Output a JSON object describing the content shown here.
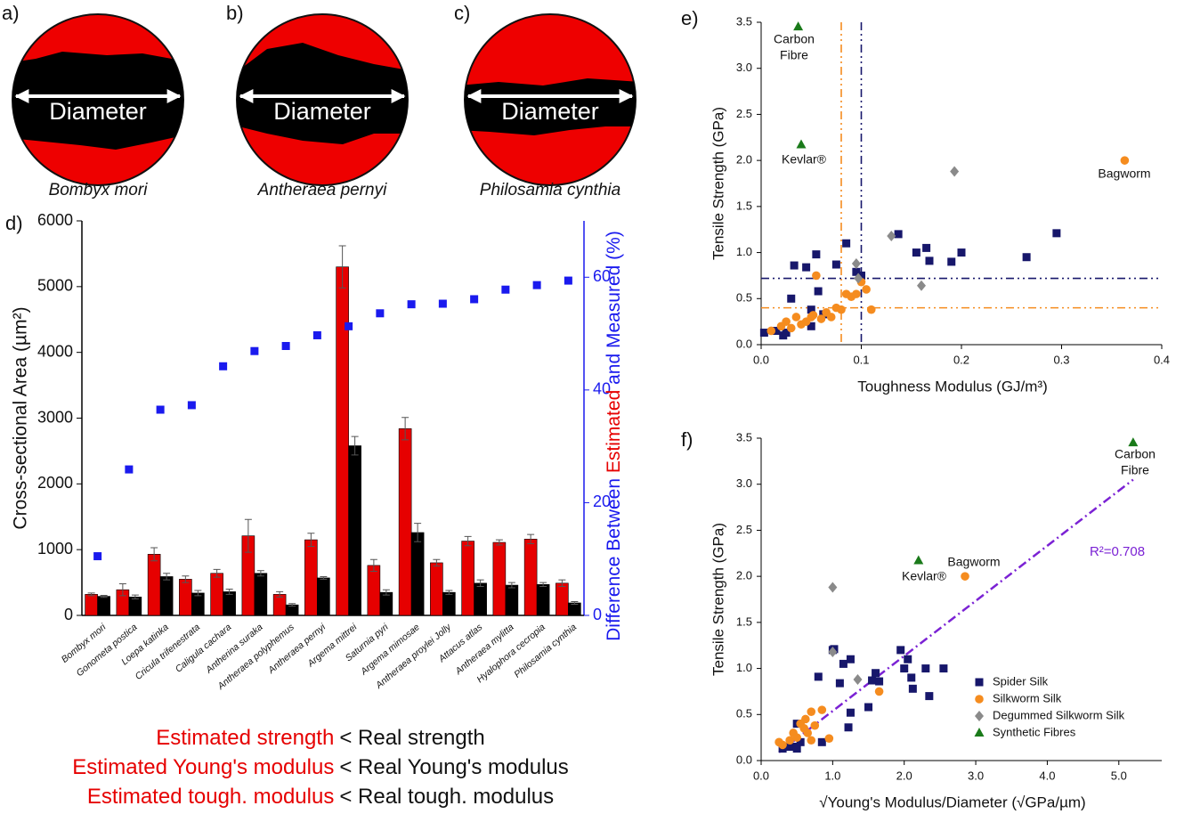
{
  "cross_sections": [
    {
      "label": "a)",
      "text": "Diameter",
      "species": "Bombyx mori"
    },
    {
      "label": "b)",
      "text": "Diameter",
      "species": "Antheraea pernyi"
    },
    {
      "label": "c)",
      "text": "Diameter",
      "species": "Philosamia cynthia"
    }
  ],
  "notes": [
    {
      "estimated": "Estimated strength",
      "real": "< Real strength"
    },
    {
      "estimated": "Estimated Young's modulus",
      "real": "< Real Young's modulus"
    },
    {
      "estimated": "Estimated tough. modulus",
      "real": "< Real tough. modulus"
    }
  ],
  "chart_data": [
    {
      "type": "bar",
      "label": "d)",
      "ylabel": "Cross-sectional Area (µm²)",
      "y2label_parts": [
        "Difference Between ",
        "Estimated",
        " and Measured (%)"
      ],
      "categories": [
        "Bombyx mori",
        "Gonometa postica",
        "Loepa katinka",
        "Cricula trifenestrata",
        "Caligula cachara",
        "Antherina suraka",
        "Antheraea polyphemus",
        "Antheraea pernyi",
        "Argema mittrei",
        "Saturnia pyri",
        "Argema mimosae",
        "Antheraea proylei Jolly",
        "Attacus atlas",
        "Antheraea mylitta",
        "Hyalophora cecropia",
        "Philosamia cynthia"
      ],
      "series": [
        {
          "color": "#e60000",
          "values": [
            320,
            390,
            930,
            550,
            640,
            1210,
            320,
            1150,
            5300,
            760,
            2840,
            800,
            1130,
            1110,
            1160,
            490
          ],
          "errors": [
            20,
            90,
            100,
            50,
            60,
            250,
            40,
            100,
            320,
            90,
            170,
            50,
            70,
            40,
            70,
            50
          ]
        },
        {
          "color": "#000000",
          "values": [
            290,
            280,
            590,
            340,
            360,
            640,
            160,
            570,
            2580,
            350,
            1260,
            350,
            490,
            460,
            470,
            190
          ],
          "errors": [
            15,
            30,
            50,
            40,
            40,
            40,
            20,
            20,
            140,
            40,
            140,
            30,
            50,
            40,
            30,
            20
          ]
        },
        {
          "axis": "y2",
          "color": "#1a1aee",
          "marker": "square",
          "values": [
            10.5,
            25.9,
            36.5,
            37.3,
            44.2,
            46.9,
            47.8,
            49.7,
            51.3,
            53.6,
            55.2,
            55.3,
            56.1,
            57.8,
            58.6,
            59.4
          ]
        }
      ],
      "ylim": [
        0,
        6000
      ],
      "yticks": [
        0,
        1000,
        2000,
        3000,
        4000,
        5000,
        6000
      ],
      "y2lim": [
        0,
        70
      ],
      "y2ticks": [
        0,
        20,
        40,
        60
      ],
      "y2color": "#1a1aee"
    },
    {
      "type": "scatter",
      "label": "e)",
      "xlabel": "Toughness Modulus (GJ/m³)",
      "ylabel": "Tensile Strength (GPa)",
      "xlim": [
        0,
        0.4
      ],
      "xticks": [
        {
          "value": 0,
          "label": "0.0"
        },
        0.1,
        0.2,
        0.3,
        0.4
      ],
      "ylim": [
        0,
        3.5
      ],
      "yticks": [
        {
          "value": 0,
          "label": "0.0"
        },
        0.5,
        {
          "value": 1,
          "label": "1.0"
        },
        1.5,
        {
          "value": 2,
          "label": "2.0"
        },
        2.5,
        {
          "value": 3,
          "label": "3.0"
        },
        3.5
      ],
      "series": [
        {
          "marker": "square",
          "color": "#17176b",
          "x": [
            0.003,
            0.015,
            0.022,
            0.025,
            0.03,
            0.033,
            0.045,
            0.05,
            0.05,
            0.055,
            0.057,
            0.062,
            0.075,
            0.085,
            0.095,
            0.1,
            0.137,
            0.155,
            0.165,
            0.168,
            0.19,
            0.2,
            0.265,
            0.295
          ],
          "y": [
            0.13,
            0.15,
            0.1,
            0.13,
            0.5,
            0.86,
            0.84,
            0.38,
            0.2,
            0.98,
            0.58,
            0.33,
            0.87,
            1.1,
            0.79,
            0.75,
            1.2,
            1.0,
            1.05,
            0.91,
            0.9,
            1.0,
            0.95,
            1.21
          ]
        },
        {
          "marker": "circle",
          "color": "#f58c1f",
          "x": [
            0.01,
            0.02,
            0.025,
            0.03,
            0.035,
            0.04,
            0.045,
            0.05,
            0.052,
            0.055,
            0.06,
            0.065,
            0.07,
            0.075,
            0.08,
            0.085,
            0.09,
            0.095,
            0.1,
            0.105,
            0.11,
            0.363
          ],
          "y": [
            0.15,
            0.2,
            0.25,
            0.18,
            0.3,
            0.22,
            0.25,
            0.3,
            0.32,
            0.75,
            0.28,
            0.35,
            0.3,
            0.4,
            0.38,
            0.55,
            0.52,
            0.55,
            0.68,
            0.6,
            0.38,
            2.0
          ]
        },
        {
          "marker": "diamond",
          "color": "#8a8a8a",
          "x": [
            0.095,
            0.097,
            0.13,
            0.16,
            0.193
          ],
          "y": [
            0.88,
            0.72,
            1.18,
            0.64,
            1.88
          ]
        },
        {
          "marker": "triangle",
          "color": "#1a7a1a",
          "x": [
            0.037,
            0.04
          ],
          "y": [
            3.45,
            2.17
          ]
        }
      ],
      "reference_lines": [
        {
          "axis": "x",
          "value": 0.08,
          "color": "#f58c1f"
        },
        {
          "axis": "x",
          "value": 0.1,
          "color": "#17176b"
        },
        {
          "axis": "y",
          "value": 0.72,
          "color": "#17176b"
        },
        {
          "axis": "y",
          "value": 0.4,
          "color": "#f58c1f"
        }
      ],
      "annotations": [
        {
          "lines": [
            "Carbon",
            "Fibre"
          ]
        },
        {
          "lines": [
            "Kevlar®"
          ]
        },
        {
          "lines": [
            "Bagworm"
          ]
        }
      ]
    },
    {
      "type": "scatter",
      "label": "f)",
      "xlabel": "√Young's Modulus/Diameter (√GPa/µm)",
      "ylabel": "Tensile Strength (GPa)",
      "xlim": [
        0,
        5.6
      ],
      "xticks": [
        {
          "value": 0,
          "label": "0.0"
        },
        {
          "value": 1,
          "label": "1.0"
        },
        {
          "value": 2,
          "label": "2.0"
        },
        {
          "value": 3,
          "label": "3.0"
        },
        {
          "value": 4,
          "label": "4.0"
        },
        {
          "value": 5,
          "label": "5.0"
        }
      ],
      "ylim": [
        0,
        3.5
      ],
      "yticks": [
        {
          "value": 0,
          "label": "0.0"
        },
        0.5,
        {
          "value": 1,
          "label": "1.0"
        },
        1.5,
        {
          "value": 2,
          "label": "2.0"
        },
        2.5,
        {
          "value": 3,
          "label": "3.0"
        },
        3.5
      ],
      "series": [
        {
          "name": "Spider Silk",
          "marker": "square",
          "color": "#17176b",
          "x": [
            0.3,
            0.35,
            0.45,
            0.5,
            0.5,
            0.55,
            0.8,
            0.85,
            1.0,
            1.02,
            1.1,
            1.15,
            1.25,
            1.22,
            1.25,
            1.5,
            1.55,
            1.6,
            1.65,
            1.95,
            2.0,
            2.05,
            2.1,
            2.12,
            2.3,
            2.35,
            2.55
          ],
          "y": [
            0.13,
            0.15,
            0.15,
            0.4,
            0.13,
            0.2,
            0.91,
            0.2,
            1.2,
            1.21,
            0.84,
            1.05,
            1.1,
            0.36,
            0.52,
            0.58,
            0.87,
            0.95,
            0.86,
            1.2,
            1.0,
            1.1,
            0.9,
            0.78,
            1.0,
            0.7,
            1.0
          ]
        },
        {
          "name": "Silkworm Silk",
          "marker": "circle",
          "color": "#f58c1f",
          "x": [
            0.25,
            0.3,
            0.4,
            0.45,
            0.5,
            0.55,
            0.6,
            0.62,
            0.65,
            0.7,
            0.7,
            0.75,
            0.85,
            0.95,
            1.65,
            2.85
          ],
          "y": [
            0.2,
            0.17,
            0.22,
            0.3,
            0.25,
            0.4,
            0.35,
            0.45,
            0.3,
            0.53,
            0.22,
            0.38,
            0.55,
            0.24,
            0.75,
            2.0
          ]
        },
        {
          "name": "Degummed Silkworm Silk",
          "marker": "diamond",
          "color": "#8a8a8a",
          "x": [
            1.0,
            1.0,
            1.35
          ],
          "y": [
            1.88,
            1.18,
            0.88
          ]
        },
        {
          "name": "Synthetic Fibres",
          "marker": "triangle",
          "color": "#1a7a1a",
          "x": [
            2.2,
            5.2
          ],
          "y": [
            2.17,
            3.45
          ]
        }
      ],
      "fit": {
        "slope": 0.598,
        "intercept": -0.06,
        "color": "#7b22d4",
        "label": "R²=0.708"
      },
      "legend": "lower right",
      "annotations": [
        {
          "lines": [
            "Carbon",
            "Fibre"
          ]
        },
        {
          "lines": [
            "Kevlar®"
          ]
        },
        {
          "lines": [
            "Bagworm"
          ]
        }
      ]
    }
  ]
}
